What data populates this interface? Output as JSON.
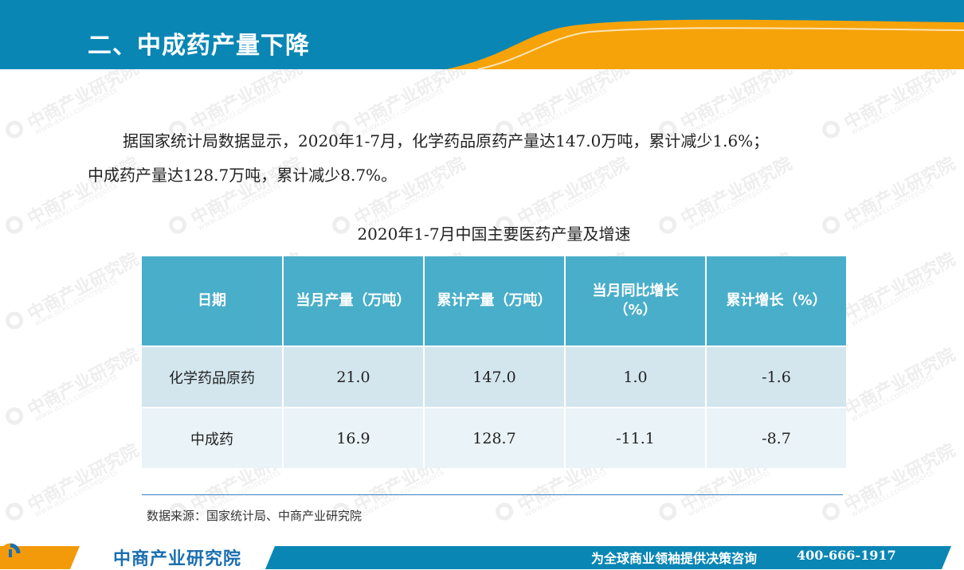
{
  "header": {
    "title": "二、中成药产量下降",
    "colors": {
      "blue": "#0a86b4",
      "orange": "#f6a30a"
    }
  },
  "intro": {
    "line1": "据国家统计局数据显示，2020年1-7月，化学药品原药产量达147.0万吨，累计减少1.6%；",
    "line2": "中成药产量达128.7万吨，累计减少8.7%。"
  },
  "table": {
    "title": "2020年1-7月中国主要医药产量及增速",
    "headers": {
      "c0": "日期",
      "c1": "当月产量（万吨）",
      "c2": "累计产量（万吨）",
      "c3_line1": "当月同比增长",
      "c3_line2": "（%）",
      "c4": "累计增长（%）"
    },
    "rows": [
      {
        "label": "化学药品原药",
        "monthly": "21.0",
        "cumulative": "147.0",
        "monthly_yoy": "1.0",
        "cumulative_growth": "-1.6"
      },
      {
        "label": "中成药",
        "monthly": "16.9",
        "cumulative": "128.7",
        "monthly_yoy": "-11.1",
        "cumulative_growth": "-8.7"
      }
    ],
    "colors": {
      "header_bg": "#49aec9",
      "row1_bg": "#d3e6ee",
      "row2_bg": "#eaf3f7"
    }
  },
  "source": "数据来源：国家统计局、中商产业研究院",
  "watermark": {
    "name": "中商产业研究院",
    "url": "www.askci.com/reports"
  },
  "footer": {
    "brand": "中商产业研究院",
    "slogan": "为全球商业领袖提供决策咨询",
    "phone": "400-666-1917",
    "colors": {
      "blue": "#0a86b4",
      "orange": "#f39a0a",
      "brand_text": "#1a6fb0"
    }
  }
}
